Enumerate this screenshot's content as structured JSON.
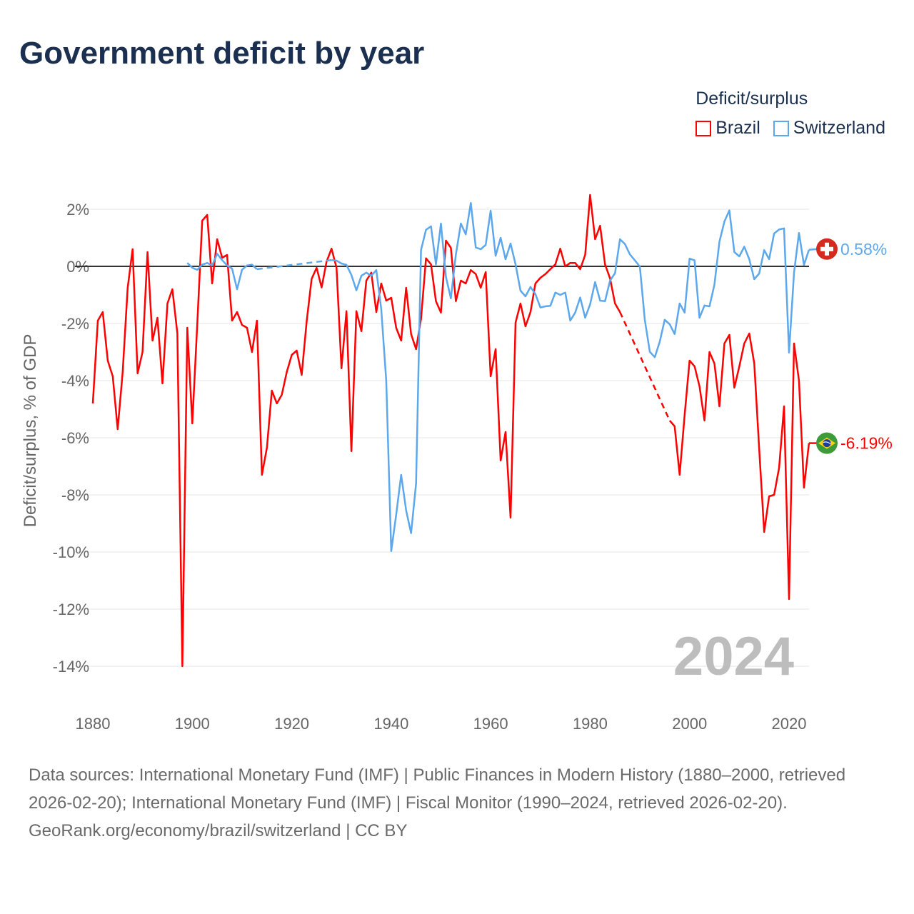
{
  "title": "Government deficit by year",
  "legend": {
    "title": "Deficit/surplus",
    "items": [
      {
        "name": "Brazil",
        "color": "#ff0000"
      },
      {
        "name": "Switzerland",
        "color": "#5da8ec"
      }
    ]
  },
  "watermark_year": "2024",
  "footer": {
    "sources": "Data sources: International Monetary Fund (IMF) | Public Finances in Modern History (1880–2000, retrieved 2026-02-20); International Monetary Fund (IMF) | Fiscal Monitor (1990–2024, retrieved 2026-02-20).",
    "credit": "GeoRank.org/economy/brazil/switzerland | CC BY"
  },
  "chart_data": {
    "type": "line",
    "title": "Government deficit by year",
    "xlabel": "",
    "ylabel": "Deficit/surplus, % of GDP",
    "xlim": [
      1880,
      2024
    ],
    "ylim": [
      -14,
      2
    ],
    "x_ticks": [
      1880,
      1900,
      1920,
      1940,
      1960,
      1980,
      2000,
      2020
    ],
    "x_tick_labels": [
      "1880",
      "1900",
      "1920",
      "1940",
      "1960",
      "1980",
      "2000",
      "2020"
    ],
    "y_ticks": [
      2,
      0,
      -2,
      -4,
      -6,
      -8,
      -10,
      -12,
      -14
    ],
    "y_tick_labels": [
      "2%",
      "0%",
      "-2%",
      "-4%",
      "-6%",
      "-8%",
      "-10%",
      "-12%",
      "-14%"
    ],
    "grid": true,
    "legend_position": "top-right",
    "x_start": 1880,
    "series": [
      {
        "name": "Brazil",
        "color": "#ff0000",
        "end_label": "-6.19%",
        "flag": "brazil",
        "values": [
          -4.8,
          -1.9,
          -1.6,
          -3.3,
          -3.85,
          -5.7,
          -3.7,
          -0.75,
          0.6,
          -3.75,
          -3.0,
          0.5,
          -2.6,
          -1.8,
          -4.1,
          -1.3,
          -0.8,
          -2.35,
          -14.0,
          -2.15,
          -5.5,
          -2.0,
          1.6,
          1.8,
          -0.6,
          0.95,
          0.3,
          0.4,
          -1.9,
          -1.6,
          -2.05,
          -2.15,
          -3.0,
          -1.9,
          -7.3,
          -6.35,
          -4.35,
          -4.8,
          -4.5,
          -3.7,
          -3.1,
          -2.95,
          -3.8,
          -1.92,
          -0.44,
          -0.05,
          -0.74,
          0.16,
          0.62,
          -0.05,
          -3.57,
          -1.57,
          -6.47,
          -1.57,
          -2.27,
          -0.5,
          -0.22,
          -1.6,
          -0.6,
          -1.2,
          -1.1,
          -2.15,
          -2.6,
          -0.75,
          -2.37,
          -2.9,
          -1.84,
          0.28,
          0.07,
          -1.22,
          -1.62,
          0.9,
          0.65,
          -1.22,
          -0.5,
          -0.6,
          -0.13,
          -0.27,
          -0.75,
          -0.2,
          -3.85,
          -2.9,
          -6.8,
          -5.8,
          -8.8,
          -1.97,
          -1.3,
          -2.1,
          -1.6,
          -0.6,
          -0.4,
          -0.27,
          -0.1,
          0.07,
          0.62,
          0.0,
          0.12,
          0.12,
          -0.1,
          0.4,
          2.5,
          0.95,
          1.42,
          0.07,
          -0.42,
          -1.3,
          -1.6,
          null,
          null,
          null,
          null,
          null,
          null,
          null,
          null,
          null,
          -5.4,
          -5.6,
          -7.3,
          -5.2,
          -3.3,
          -3.5,
          -4.2,
          -5.4,
          -3.0,
          -3.4,
          -4.9,
          -2.7,
          -2.4,
          -4.25,
          -3.5,
          -2.7,
          -2.35,
          -3.4,
          -6.4,
          -9.3,
          -8.05,
          -8.0,
          -7.05,
          -4.9,
          -11.65,
          -2.7,
          -4.0,
          -7.75,
          -6.19
        ]
      },
      {
        "name": "Switzerland",
        "color": "#5da8ec",
        "end_label": "0.58%",
        "flag": "switzerland",
        "values": [
          null,
          null,
          null,
          null,
          null,
          null,
          null,
          null,
          null,
          null,
          null,
          null,
          null,
          null,
          null,
          null,
          null,
          null,
          null,
          0.12,
          -0.05,
          -0.12,
          0.06,
          0.12,
          0.03,
          0.44,
          0.22,
          0.03,
          -0.08,
          -0.8,
          -0.12,
          0.03,
          0.06,
          -0.1,
          null,
          null,
          null,
          null,
          null,
          null,
          null,
          null,
          null,
          null,
          null,
          null,
          null,
          null,
          0.22,
          0.2,
          0.1,
          0.05,
          -0.3,
          -0.84,
          -0.33,
          -0.22,
          -0.33,
          -0.13,
          -1.5,
          -4.0,
          -9.97,
          -8.7,
          -7.3,
          -8.55,
          -9.34,
          -7.6,
          0.57,
          1.28,
          1.4,
          0.07,
          1.5,
          -0.37,
          -1.12,
          0.41,
          1.5,
          1.12,
          2.22,
          0.66,
          0.6,
          0.75,
          1.95,
          0.37,
          1.0,
          0.25,
          0.8,
          0.07,
          -0.85,
          -1.05,
          -0.72,
          -0.97,
          -1.44,
          -1.4,
          -1.38,
          -0.92,
          -1.0,
          -0.92,
          -1.9,
          -1.62,
          -1.09,
          -1.8,
          -1.33,
          -0.55,
          -1.2,
          -1.22,
          -0.5,
          -0.24,
          0.95,
          0.78,
          0.42,
          0.21,
          -0.01,
          -1.87,
          -2.99,
          -3.18,
          -2.64,
          -1.87,
          -2.03,
          -2.37,
          -1.3,
          -1.62,
          0.27,
          0.21,
          -1.8,
          -1.37,
          -1.4,
          -0.64,
          0.86,
          1.57,
          1.96,
          0.5,
          0.35,
          0.69,
          0.25,
          -0.45,
          -0.25,
          0.57,
          0.25,
          1.15,
          1.29,
          1.33,
          -3.02,
          -0.22,
          1.17,
          0.05,
          0.58
        ]
      }
    ]
  }
}
